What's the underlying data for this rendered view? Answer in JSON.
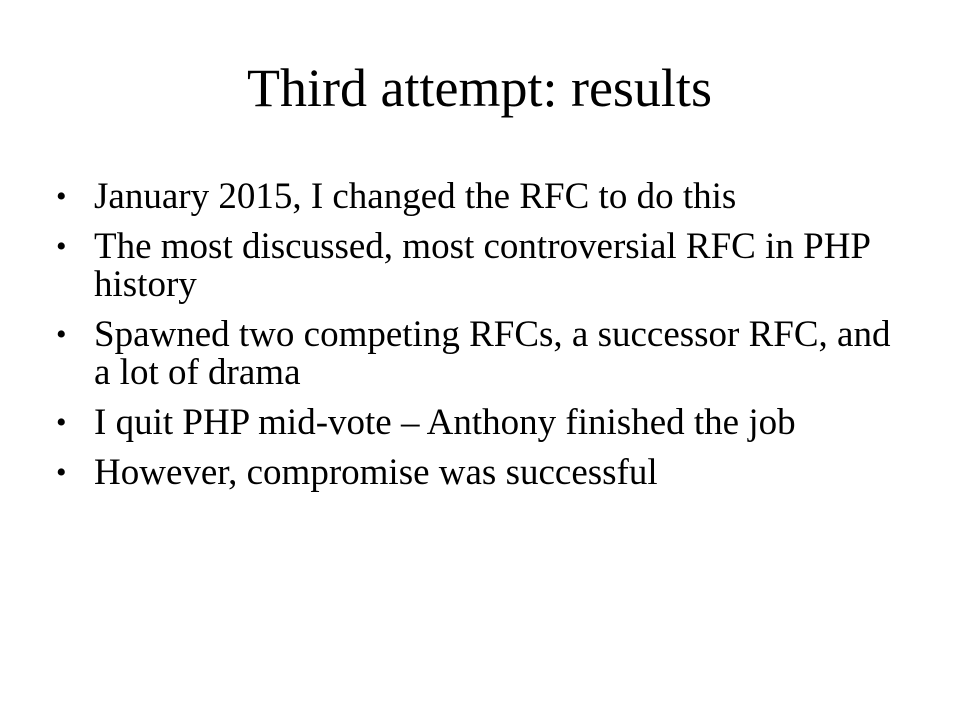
{
  "slide": {
    "title": "Third attempt: results",
    "bullet_glyph": "•",
    "bullets": [
      {
        "text": "January 2015, I changed the RFC to do this"
      },
      {
        "text": "The most discussed, most controversial RFC in PHP history"
      },
      {
        "text": "Spawned two competing RFCs, a successor RFC, and a lot of drama"
      },
      {
        "text": "I quit PHP mid-vote – Anthony finished the job"
      },
      {
        "text": "However, compromise was successful"
      }
    ]
  }
}
